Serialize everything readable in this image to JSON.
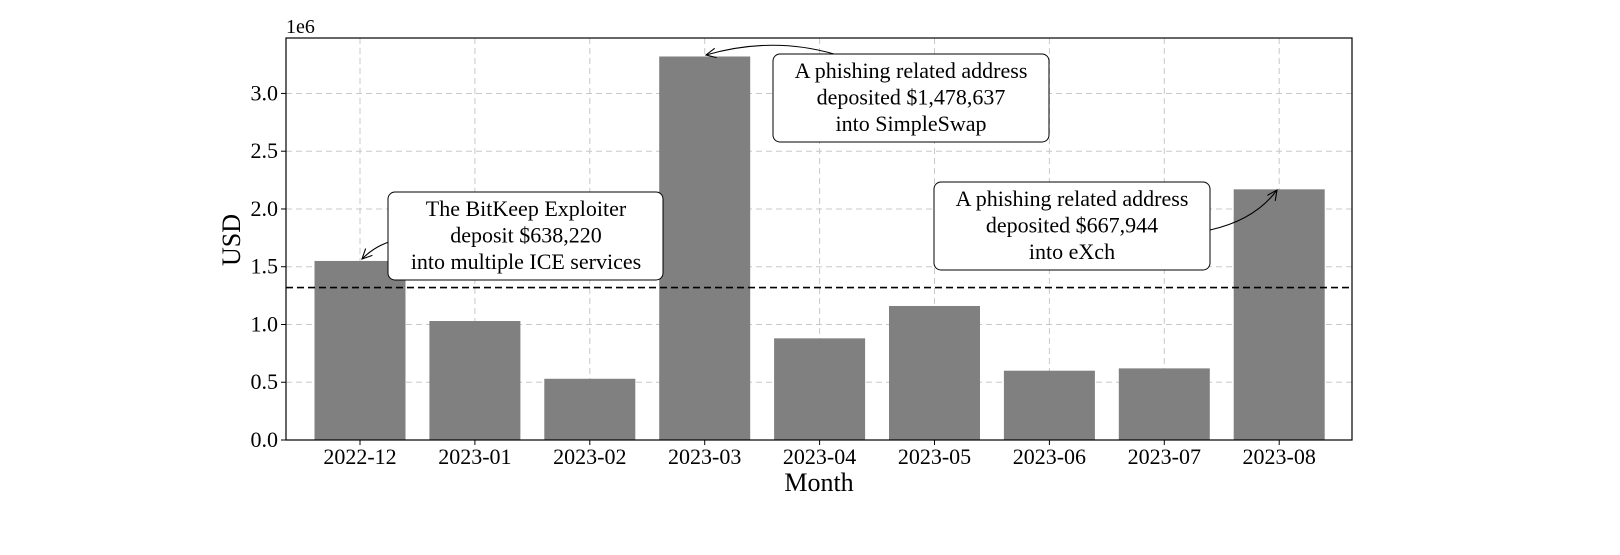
{
  "chart_data": {
    "type": "bar",
    "title": "",
    "xlabel": "Month",
    "ylabel": "USD",
    "y_exponent_label": "1e6",
    "categories": [
      "2022-12",
      "2023-01",
      "2023-02",
      "2023-03",
      "2023-04",
      "2023-05",
      "2023-06",
      "2023-07",
      "2023-08"
    ],
    "values": [
      1550000,
      1030000,
      530000,
      3320000,
      880000,
      1160000,
      600000,
      620000,
      2170000
    ],
    "ylim": [
      0,
      3.48
    ],
    "y_ticks": [
      0.0,
      0.5,
      1.0,
      1.5,
      2.0,
      2.5,
      3.0
    ],
    "y_tick_labels": [
      "0.0",
      "0.5",
      "1.0",
      "1.5",
      "2.0",
      "2.5",
      "3.0"
    ],
    "y_scale": 1000000,
    "grid": true,
    "bar_color": "#808080",
    "reference_line": {
      "value": 1320000,
      "style": "dashed",
      "color": "#000000"
    },
    "annotations": [
      {
        "target_category": "2022-12",
        "lines": [
          "The BitKeep Exploiter",
          "deposit $638,220",
          "into multiple ICE services"
        ]
      },
      {
        "target_category": "2023-03",
        "lines": [
          "A phishing related address",
          "deposited $1,478,637",
          "into SimpleSwap"
        ]
      },
      {
        "target_category": "2023-08",
        "lines": [
          "A phishing related address",
          "deposited $667,944",
          "into eXch"
        ]
      }
    ]
  }
}
